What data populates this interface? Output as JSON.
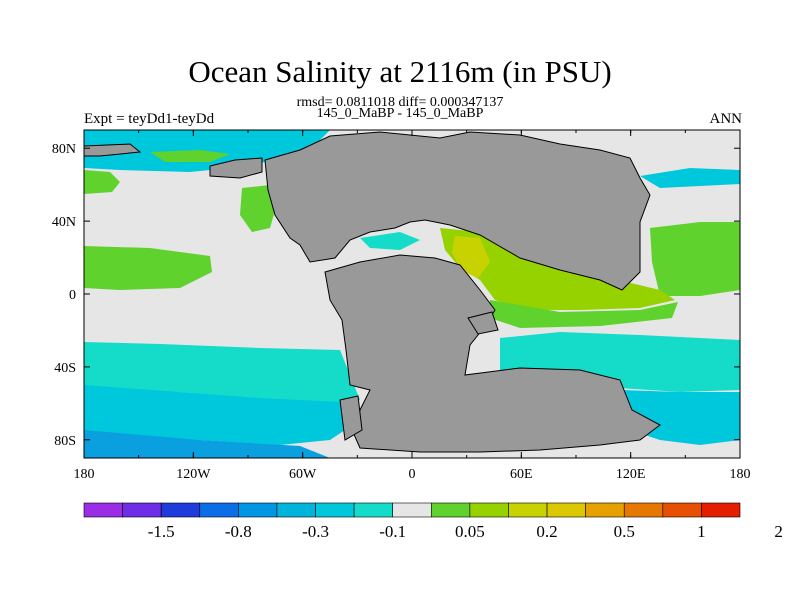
{
  "title": "Ocean Salinity at 2116m (in PSU)",
  "stats_line": "rmsd= 0.0811018 diff= 0.000347137",
  "comparison": "145_0_MaBP - 145_0_MaBP",
  "experiment": "Expt = teyDd1-teyDd",
  "season": "ANN",
  "axes": {
    "lon_ticks": [
      "180",
      "120W",
      "60W",
      "0",
      "60E",
      "120E",
      "180"
    ],
    "lat_ticks": [
      "80N",
      "40N",
      "0",
      "40S",
      "80S"
    ]
  },
  "colors": {
    "land": "#999999",
    "near_zero": "#e6e6e6",
    "neg_small": "#14dcc8",
    "neg_mid": "#00c8dc",
    "pos_small": "#5fd22d",
    "pos_mid": "#96d200",
    "pos_high": "#c8d200"
  },
  "chart_data": {
    "type": "heatmap",
    "projection": "cylindrical-equidistant",
    "lon_range": [
      -180,
      180
    ],
    "lat_range": [
      -90,
      90
    ],
    "colorbar": {
      "colors": [
        "#9b2de6",
        "#6e2de6",
        "#1e3cdc",
        "#0a6ee6",
        "#0096e6",
        "#00b4dc",
        "#00c8dc",
        "#14dcc8",
        "#e6e6e6",
        "#5fd22d",
        "#96d200",
        "#c8d200",
        "#dcc800",
        "#e6a000",
        "#e67800",
        "#e65000",
        "#e61e00"
      ],
      "labels": [
        "-1.5",
        "-0.8",
        "-0.3",
        "-0.1",
        "0.05",
        "0.2",
        "0.5",
        "1",
        "2"
      ]
    }
  }
}
